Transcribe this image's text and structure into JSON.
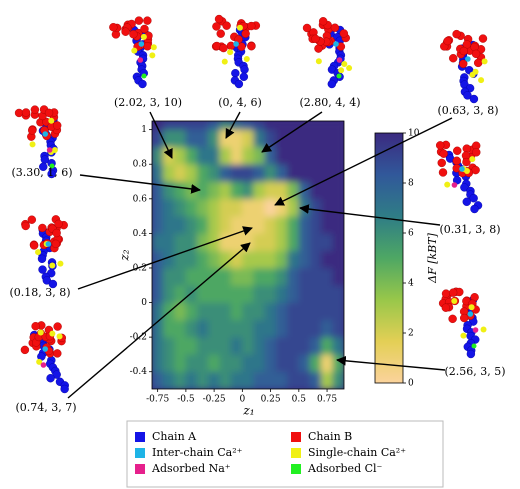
{
  "chart_data": {
    "type": "heatmap",
    "x_label": "z₁",
    "y_label": "z₂",
    "colorbar_label": "ΔF [kBT]",
    "xlim": [
      -0.8,
      0.9
    ],
    "ylim": [
      -0.5,
      1.05
    ],
    "xticks": [
      -0.75,
      -0.5,
      -0.25,
      0,
      0.25,
      0.5,
      0.75
    ],
    "yticks": [
      -0.4,
      -0.2,
      0,
      0.2,
      0.4,
      0.6,
      0.8,
      1
    ],
    "xbins": [
      -0.8,
      -0.7,
      -0.6,
      -0.5,
      -0.4,
      -0.3,
      -0.2,
      -0.1,
      0,
      0.1,
      0.2,
      0.3,
      0.4,
      0.5,
      0.6,
      0.7,
      0.8,
      0.9
    ],
    "ybins": [
      -0.5,
      -0.4,
      -0.3,
      -0.2,
      -0.1,
      0,
      0.1,
      0.2,
      0.3,
      0.4,
      0.5,
      0.6,
      0.7,
      0.8,
      0.9,
      1,
      1.05
    ],
    "z": [
      [
        8,
        7,
        6,
        7,
        6,
        7,
        6,
        7,
        7,
        8,
        8,
        8,
        9,
        9,
        8,
        3,
        6
      ],
      [
        7,
        6,
        5,
        6,
        6,
        5,
        6,
        6,
        7,
        7,
        8,
        9,
        9,
        8,
        5,
        1,
        5
      ],
      [
        7,
        6,
        5,
        5,
        6,
        6,
        6,
        7,
        6,
        7,
        8,
        9,
        9,
        9,
        8,
        5,
        7
      ],
      [
        7,
        5,
        5,
        6,
        7,
        6,
        6,
        6,
        6,
        7,
        7,
        8,
        9,
        9,
        9,
        8,
        9
      ],
      [
        7,
        5,
        4,
        5,
        6,
        6,
        6,
        5,
        6,
        6,
        7,
        8,
        9,
        9,
        9,
        9,
        9
      ],
      [
        8,
        6,
        5,
        6,
        5,
        5,
        5,
        5,
        5,
        6,
        6,
        7,
        8,
        9,
        9,
        9,
        9
      ],
      [
        8,
        6,
        6,
        5,
        5,
        5,
        5,
        4,
        4,
        5,
        5,
        6,
        8,
        9,
        9,
        9,
        10
      ],
      [
        8,
        7,
        6,
        6,
        5,
        4,
        3,
        2,
        3,
        3,
        3,
        4,
        7,
        8,
        9,
        10,
        10
      ],
      [
        7,
        7,
        6,
        6,
        4,
        3,
        1,
        1,
        1,
        2,
        2,
        3,
        5,
        8,
        9,
        9,
        10
      ],
      [
        8,
        7,
        7,
        6,
        5,
        3,
        2,
        1,
        1,
        1,
        2,
        3,
        5,
        8,
        9,
        10,
        10
      ],
      [
        8,
        7,
        6,
        5,
        4,
        3,
        2,
        2,
        1,
        1,
        0,
        1,
        3,
        7,
        9,
        10,
        10
      ],
      [
        8,
        6,
        5,
        4,
        5,
        4,
        3,
        5,
        6,
        3,
        2,
        2,
        4,
        8,
        10,
        10,
        10
      ],
      [
        7,
        3,
        2,
        3,
        5,
        6,
        8,
        9,
        9,
        8,
        6,
        8,
        10,
        10,
        10,
        10,
        10
      ],
      [
        6,
        2,
        3,
        5,
        7,
        7,
        3,
        1,
        3,
        4,
        8,
        10,
        10,
        10,
        10,
        10,
        10
      ],
      [
        9,
        6,
        6,
        8,
        8,
        6,
        1,
        1,
        2,
        7,
        9,
        10,
        10,
        10,
        10,
        10,
        10
      ],
      [
        10,
        9,
        9,
        9,
        9,
        8,
        6,
        7,
        8,
        9,
        10,
        10,
        10,
        10,
        10,
        10,
        10
      ]
    ],
    "clim": [
      0,
      10
    ],
    "cbticks": [
      0,
      2,
      4,
      6,
      8,
      10
    ],
    "colormap": [
      "#fbd39c",
      "#e3cf55",
      "#98c74a",
      "#4ea764",
      "#2f7d86",
      "#31589a",
      "#3b2a80"
    ],
    "annotations": [
      "(2.02, 3, 10)",
      "(0, 4, 6)",
      "(2.80, 4, 4)",
      "(0.63, 3, 8)",
      "(3.30, 1, 6)",
      "(0.31, 3, 8)",
      "(0.18, 3, 8)",
      "(0.74, 3, 7)",
      "(2.56, 3, 5)"
    ],
    "legend": [
      {
        "name": "Chain A",
        "color": "#1414e6"
      },
      {
        "name": "Chain B",
        "color": "#f01010"
      },
      {
        "name": "Inter-chain Ca²⁺",
        "color": "#1eb4e6"
      },
      {
        "name": "Single-chain Ca²⁺",
        "color": "#f0f014"
      },
      {
        "name": "Adsorbed Na⁺",
        "color": "#e6208c"
      },
      {
        "name": "Adsorbed Cl⁻",
        "color": "#22f022"
      }
    ]
  }
}
